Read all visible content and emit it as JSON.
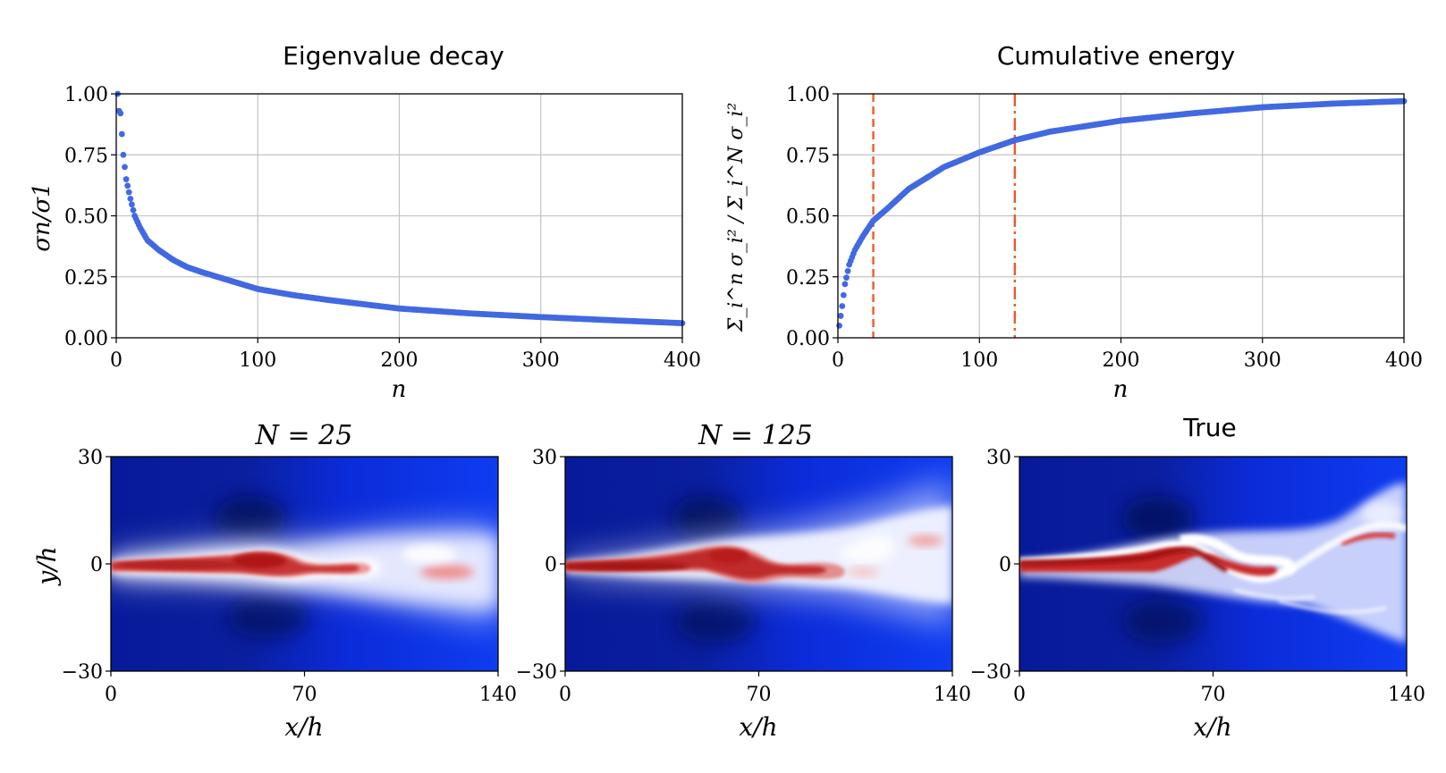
{
  "chart_data": [
    {
      "type": "scatter",
      "title": "Eigenvalue decay",
      "xlabel": "n",
      "ylabel": "σn/σ1",
      "xlim": [
        0,
        400
      ],
      "ylim": [
        0,
        1
      ],
      "xticks": [
        "0",
        "100",
        "200",
        "300",
        "400"
      ],
      "yticks": [
        "0.00",
        "0.25",
        "0.50",
        "0.75",
        "1.00"
      ],
      "grid": true,
      "marker_color": "#4169e1",
      "samples": {
        "x": [
          1,
          2,
          3,
          5,
          7,
          10,
          13,
          17,
          22,
          30,
          40,
          50,
          60,
          80,
          100,
          125,
          150,
          200,
          250,
          300,
          350,
          400
        ],
        "y": [
          1.0,
          0.93,
          0.92,
          0.75,
          0.65,
          0.57,
          0.5,
          0.45,
          0.4,
          0.36,
          0.32,
          0.29,
          0.27,
          0.235,
          0.2,
          0.175,
          0.155,
          0.12,
          0.1,
          0.085,
          0.072,
          0.06
        ]
      }
    },
    {
      "type": "scatter",
      "title": "Cumulative energy",
      "xlabel": "n",
      "ylabel": "Σ_i^n σ_i² / Σ_i^N σ_i²",
      "xlim": [
        0,
        400
      ],
      "ylim": [
        0,
        1
      ],
      "xticks": [
        "0",
        "100",
        "200",
        "300",
        "400"
      ],
      "yticks": [
        "0.00",
        "0.25",
        "0.50",
        "0.75",
        "1.00"
      ],
      "grid": true,
      "marker_color": "#4169e1",
      "samples": {
        "x": [
          1,
          3,
          5,
          8,
          12,
          18,
          25,
          35,
          50,
          75,
          100,
          125,
          150,
          200,
          250,
          300,
          350,
          400
        ],
        "y": [
          0.05,
          0.13,
          0.22,
          0.3,
          0.36,
          0.42,
          0.48,
          0.53,
          0.61,
          0.7,
          0.76,
          0.81,
          0.845,
          0.89,
          0.92,
          0.945,
          0.96,
          0.97
        ]
      },
      "vertical_lines": [
        {
          "x": 25,
          "style": "dashed",
          "color": "#f05a28"
        },
        {
          "x": 125,
          "style": "dashdot",
          "color": "#f05a28"
        }
      ]
    },
    {
      "type": "heatmap",
      "title": "N = 25",
      "xlabel": "x/h",
      "ylabel": "y/h",
      "xlim": [
        0,
        140
      ],
      "ylim": [
        -30,
        30
      ],
      "xticks": [
        "0",
        "70",
        "140"
      ],
      "yticks": [
        "30",
        "0",
        "−30"
      ]
    },
    {
      "type": "heatmap",
      "title": "N = 125",
      "xlabel": "x/h",
      "xlim": [
        0,
        140
      ],
      "ylim": [
        -30,
        30
      ],
      "xticks": [
        "0",
        "70",
        "140"
      ],
      "yticks": [
        "30",
        "0",
        "−30"
      ]
    },
    {
      "type": "heatmap",
      "title": "True",
      "xlabel": "x/h",
      "xlim": [
        0,
        140
      ],
      "ylim": [
        -30,
        30
      ],
      "xticks": [
        "0",
        "70",
        "140"
      ],
      "yticks": [
        "30",
        "0",
        "−30"
      ]
    }
  ]
}
